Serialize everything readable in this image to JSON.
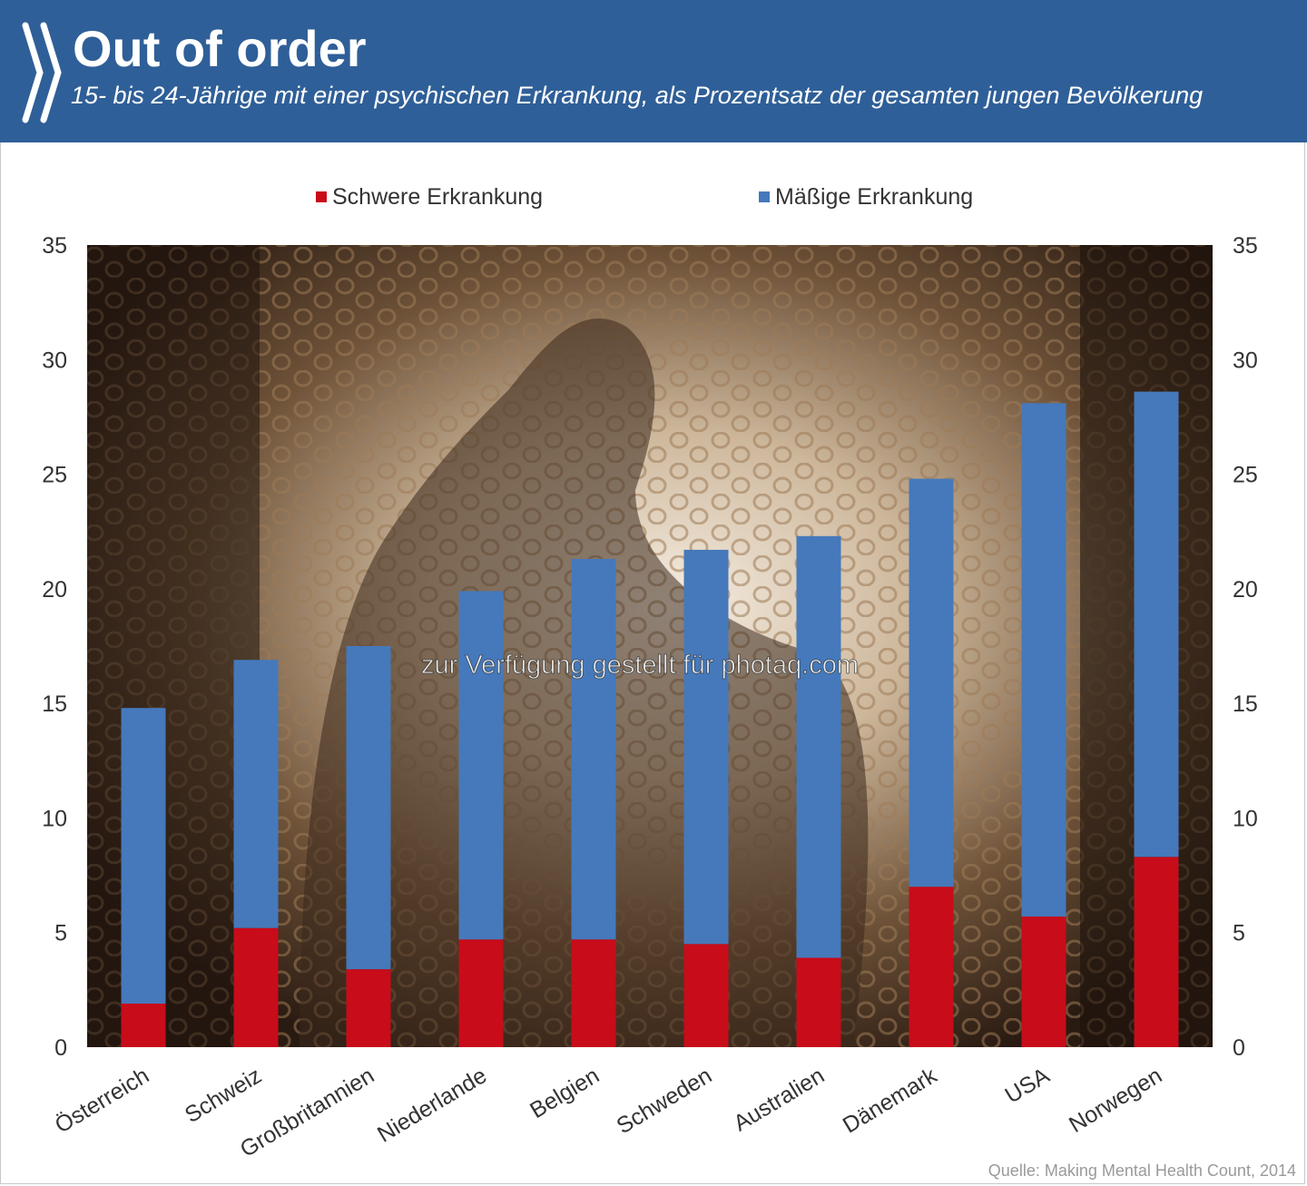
{
  "header": {
    "title": "Out of order",
    "subtitle": "15- bis 24-Jährige mit einer psychischen Erkrankung, als Prozentsatz der gesamten jungen Bevölkerung"
  },
  "colors": {
    "header_bg": "#2f5f98",
    "severe": "#c80c1a",
    "moderate": "#4579bb"
  },
  "watermark": "zur Verfügung gestellt für photaq.com",
  "source": "Quelle: Making Mental Health Count, 2014",
  "chart_data": {
    "type": "bar",
    "stacked": true,
    "categories": [
      "Österreich",
      "Schweiz",
      "Großbritannien",
      "Niederlande",
      "Belgien",
      "Schweden",
      "Australien",
      "Dänemark",
      "USA",
      "Norwegen"
    ],
    "series": [
      {
        "name": "Schwere Erkrankung",
        "color": "#c80c1a",
        "values": [
          1.9,
          5.2,
          3.4,
          4.7,
          4.7,
          4.5,
          3.9,
          7.0,
          5.7,
          8.3
        ]
      },
      {
        "name": "Mäßige Erkrankung",
        "color": "#4579bb",
        "values": [
          12.9,
          11.7,
          14.1,
          15.2,
          16.6,
          17.2,
          18.4,
          17.8,
          22.4,
          20.3
        ]
      }
    ],
    "ylim": [
      0,
      35
    ],
    "yticks": [
      "0",
      "5",
      "10",
      "15",
      "20",
      "25",
      "30",
      "35"
    ],
    "y_axis_both_sides": true,
    "legend_position": "top-center",
    "grid": false,
    "background": "photo"
  }
}
